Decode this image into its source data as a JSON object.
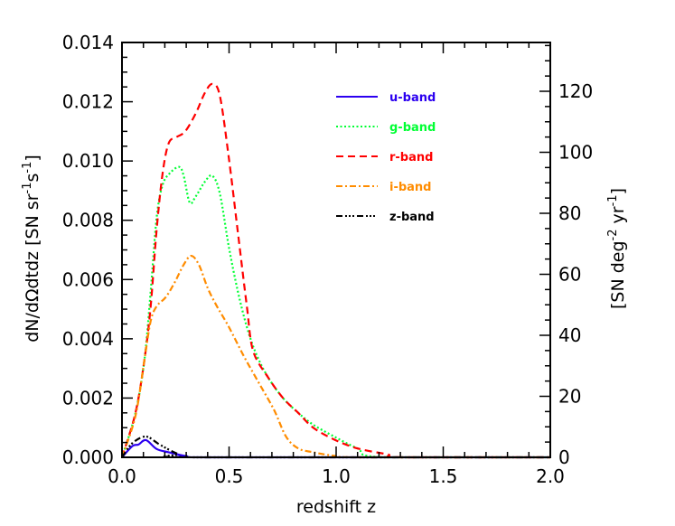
{
  "chart_data": {
    "type": "line",
    "title": "",
    "xlabel": "redshift z",
    "ylabel": "dN/dΩdtdz [SN sr⁻¹s⁻¹]",
    "ylabel_parts": {
      "main": "dN/dΩdtdz  [SN sr",
      "sup1": "-1",
      "mid": "s",
      "sup2": "-1",
      "end": "]"
    },
    "y2label": "[SN deg⁻² yr⁻¹]",
    "y2label_parts": {
      "main": "[SN deg",
      "sup1": "-2",
      "mid": " yr",
      "sup2": "-1",
      "end": "]"
    },
    "xlim": [
      0,
      2.0
    ],
    "ylim": [
      0,
      0.014
    ],
    "y2lim": [
      0,
      136
    ],
    "grid": false,
    "legend_position": "top-right",
    "xticks": [
      "0.0",
      "0.5",
      "1.0",
      "1.5",
      "2.0"
    ],
    "yticks": [
      "0.000",
      "0.002",
      "0.004",
      "0.006",
      "0.008",
      "0.010",
      "0.012",
      "0.014"
    ],
    "y2ticks": [
      "0",
      "20",
      "40",
      "60",
      "80",
      "100",
      "120"
    ],
    "series": [
      {
        "name": "u-band",
        "color": "#2b00f0",
        "style": "solid",
        "x": [
          0,
          0.049,
          0.077,
          0.112,
          0.162,
          0.218,
          0.302,
          0.4,
          2.0
        ],
        "y": [
          0,
          0.00038,
          0.00043,
          0.00058,
          0.00028,
          0.00017,
          4e-05,
          0,
          0
        ]
      },
      {
        "name": "g-band",
        "color": "#00ff33",
        "style": "dotted",
        "x": [
          0,
          0.063,
          0.105,
          0.134,
          0.162,
          0.19,
          0.225,
          0.267,
          0.288,
          0.316,
          0.344,
          0.387,
          0.422,
          0.457,
          0.499,
          0.541,
          0.583,
          0.626,
          0.682,
          0.752,
          0.823,
          0.893,
          0.991,
          1.1,
          1.22,
          2.0
        ],
        "y": [
          0,
          0.0015,
          0.0033,
          0.0056,
          0.0081,
          0.0092,
          0.0096,
          0.0098,
          0.0095,
          0.0086,
          0.0088,
          0.0093,
          0.0095,
          0.0089,
          0.0071,
          0.0056,
          0.0044,
          0.0035,
          0.0027,
          0.002,
          0.0015,
          0.0011,
          0.0007,
          0.0003,
          0,
          0
        ]
      },
      {
        "name": "r-band",
        "color": "#ff0000",
        "style": "dashed",
        "x": [
          0,
          0.063,
          0.105,
          0.134,
          0.162,
          0.19,
          0.218,
          0.253,
          0.295,
          0.344,
          0.387,
          0.422,
          0.457,
          0.499,
          0.541,
          0.583,
          0.612,
          0.682,
          0.752,
          0.823,
          0.893,
          0.991,
          1.1,
          1.24,
          1.31,
          2.0
        ],
        "y": [
          0,
          0.0015,
          0.0033,
          0.0051,
          0.0077,
          0.0096,
          0.0106,
          0.0108,
          0.011,
          0.0116,
          0.0123,
          0.0126,
          0.0122,
          0.0101,
          0.0076,
          0.0051,
          0.0036,
          0.0027,
          0.002,
          0.0015,
          0.001,
          0.0006,
          0.0003,
          0.0001,
          0,
          0
        ]
      },
      {
        "name": "i-band",
        "color": "#ff8c00",
        "style": "dashdot",
        "x": [
          0,
          0.063,
          0.105,
          0.134,
          0.162,
          0.204,
          0.246,
          0.288,
          0.323,
          0.359,
          0.401,
          0.443,
          0.499,
          0.57,
          0.64,
          0.71,
          0.766,
          0.823,
          0.893,
          0.991,
          1.1,
          2.0
        ],
        "y": [
          0,
          0.0014,
          0.0033,
          0.0046,
          0.0051,
          0.0054,
          0.0059,
          0.0065,
          0.0068,
          0.0065,
          0.0057,
          0.0051,
          0.0044,
          0.0034,
          0.0025,
          0.0016,
          0.0007,
          0.0003,
          0.00017,
          5e-05,
          0,
          0
        ]
      },
      {
        "name": "z-band",
        "color": "#000000",
        "style": "dashdotdot",
        "x": [
          0,
          0.049,
          0.112,
          0.176,
          0.26,
          0.344,
          2.0
        ],
        "y": [
          0,
          0.00048,
          0.0007,
          0.00043,
          0.00012,
          0,
          0
        ]
      }
    ]
  }
}
